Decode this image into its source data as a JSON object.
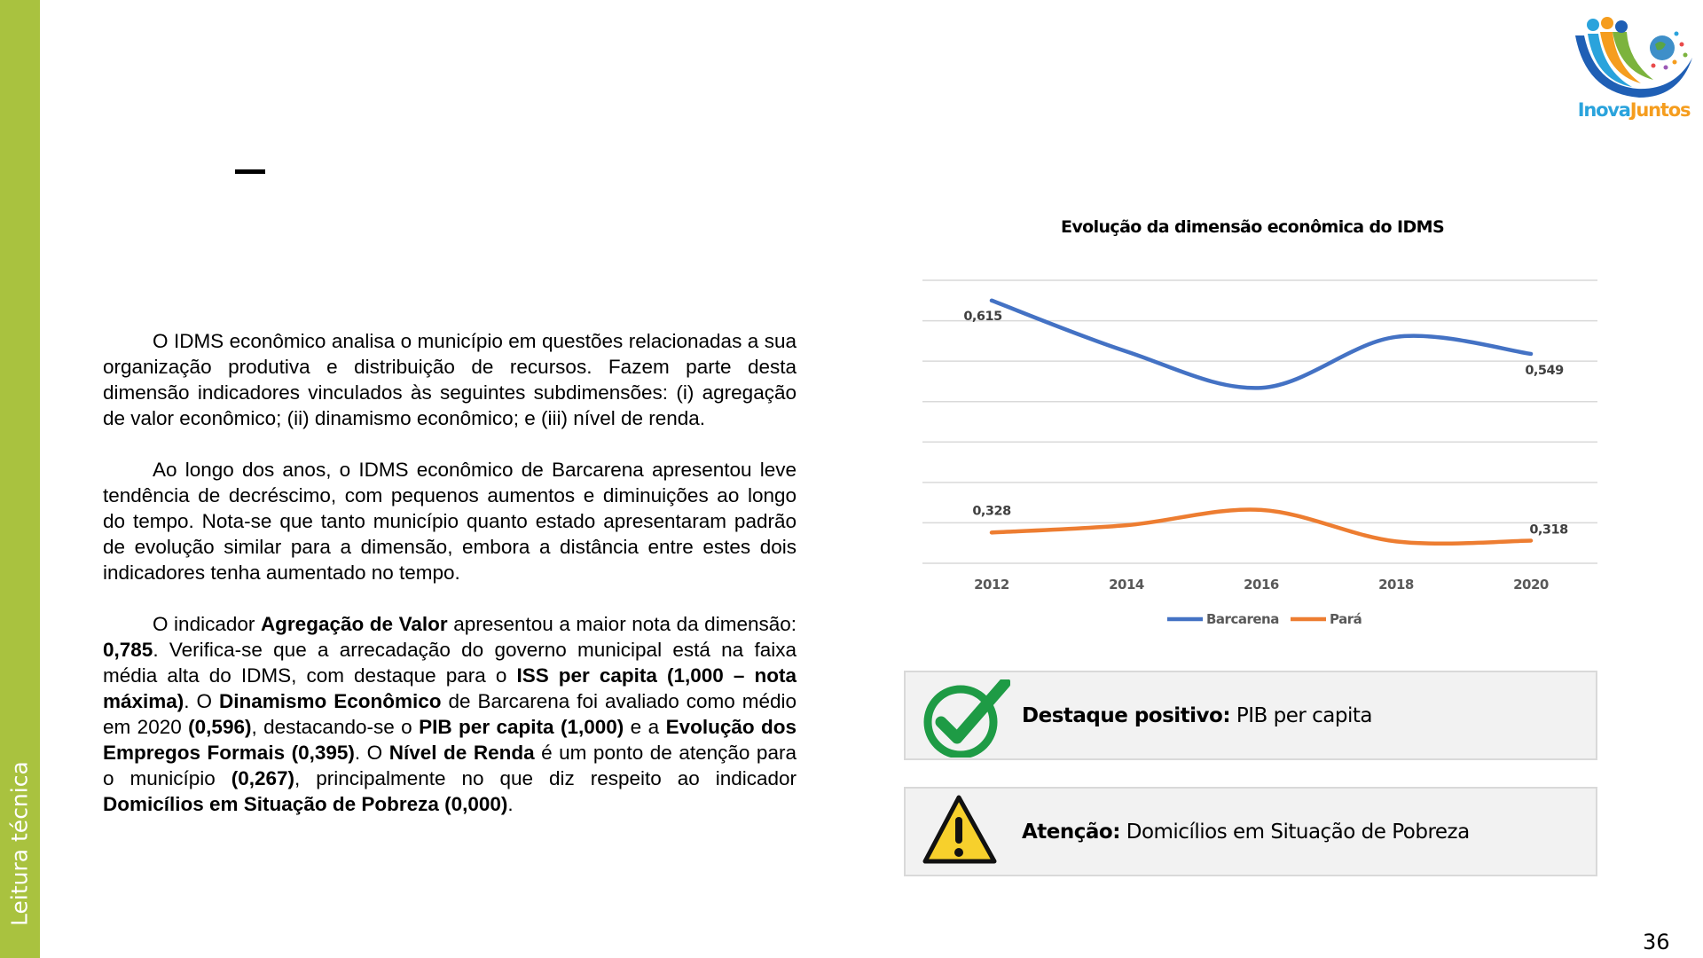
{
  "sidebar": {
    "label": "Leitura técnica",
    "color": "#a9c23f"
  },
  "logo": {
    "text": "InovaJuntos"
  },
  "title_dash": "–",
  "body": {
    "paragraphs": [
      [
        {
          "text": "O IDMS econômico analisa o município em questões relacionadas a sua organização produtiva e distribuição de recursos. Fazem parte desta dimensão indicadores vinculados às seguintes subdimensões: (i) agregação de valor econômico; (ii) dinamismo econômico; e (iii) nível de renda.",
          "bold": false
        }
      ],
      [
        {
          "text": "Ao longo dos anos, o IDMS econômico de Barcarena apresentou leve tendência de decréscimo, com pequenos aumentos e diminuições ao longo do tempo. Nota-se que tanto município quanto estado apresentaram padrão de evolução similar para a dimensão, embora a distância entre estes dois indicadores tenha aumentado no tempo.",
          "bold": false
        }
      ],
      [
        {
          "text": "O indicador ",
          "bold": false
        },
        {
          "text": "Agregação de Valor",
          "bold": true
        },
        {
          "text": " apresentou a maior nota da dimensão: ",
          "bold": false
        },
        {
          "text": "0,785",
          "bold": true
        },
        {
          "text": ". Verifica-se que a arrecadação do governo municipal está na faixa média alta do IDMS, com destaque para o ",
          "bold": false
        },
        {
          "text": "ISS per capita (1,000 – nota máxima)",
          "bold": true
        },
        {
          "text": ". O ",
          "bold": false
        },
        {
          "text": "Dinamismo Econômico",
          "bold": true
        },
        {
          "text": " de Barcarena foi avaliado como médio em 2020 ",
          "bold": false
        },
        {
          "text": "(0,596)",
          "bold": true
        },
        {
          "text": ", destacando-se o ",
          "bold": false
        },
        {
          "text": "PIB per capita (1,000)",
          "bold": true
        },
        {
          "text": " e a ",
          "bold": false
        },
        {
          "text": "Evolução dos Empregos Formais (0,395)",
          "bold": true
        },
        {
          "text": ". O ",
          "bold": false
        },
        {
          "text": "Nível de Renda",
          "bold": true
        },
        {
          "text": " é um ponto de atenção para o município ",
          "bold": false
        },
        {
          "text": "(0,267)",
          "bold": true
        },
        {
          "text": ", principalmente no que diz respeito ao indicador ",
          "bold": false
        },
        {
          "text": "Domicílios em Situação de Pobreza (0,000)",
          "bold": true
        },
        {
          "text": ".",
          "bold": false
        }
      ]
    ]
  },
  "chart_data": {
    "type": "line",
    "title": "Evolução da dimensão econômica do IDMS",
    "categories": [
      "2012",
      "2014",
      "2016",
      "2018",
      "2020"
    ],
    "series": [
      {
        "name": "Barcarena",
        "color": "#4472c4",
        "values": [
          0.615,
          0.552,
          0.507,
          0.57,
          0.549
        ],
        "data_labels": [
          "0,615",
          null,
          null,
          null,
          "0,549"
        ]
      },
      {
        "name": "Pará",
        "color": "#ed7d31",
        "values": [
          0.328,
          0.337,
          0.356,
          0.317,
          0.318
        ],
        "data_labels": [
          "0,328",
          null,
          null,
          null,
          "0,318"
        ]
      }
    ],
    "ylim": [
      0.29,
      0.64
    ],
    "y_tick_labels_shown": false,
    "grid": true,
    "smooth": true,
    "legend": "bottom"
  },
  "highlights": {
    "positive": {
      "label": "Destaque positivo:",
      "value": "PIB per capita",
      "icon": "check-circle-icon",
      "color": "#1e9b45"
    },
    "attention": {
      "label": "Atenção:",
      "value": "Domicílios em Situação de Pobreza",
      "icon": "warning-icon",
      "color": "#f7d02c"
    }
  },
  "page_number": "36"
}
